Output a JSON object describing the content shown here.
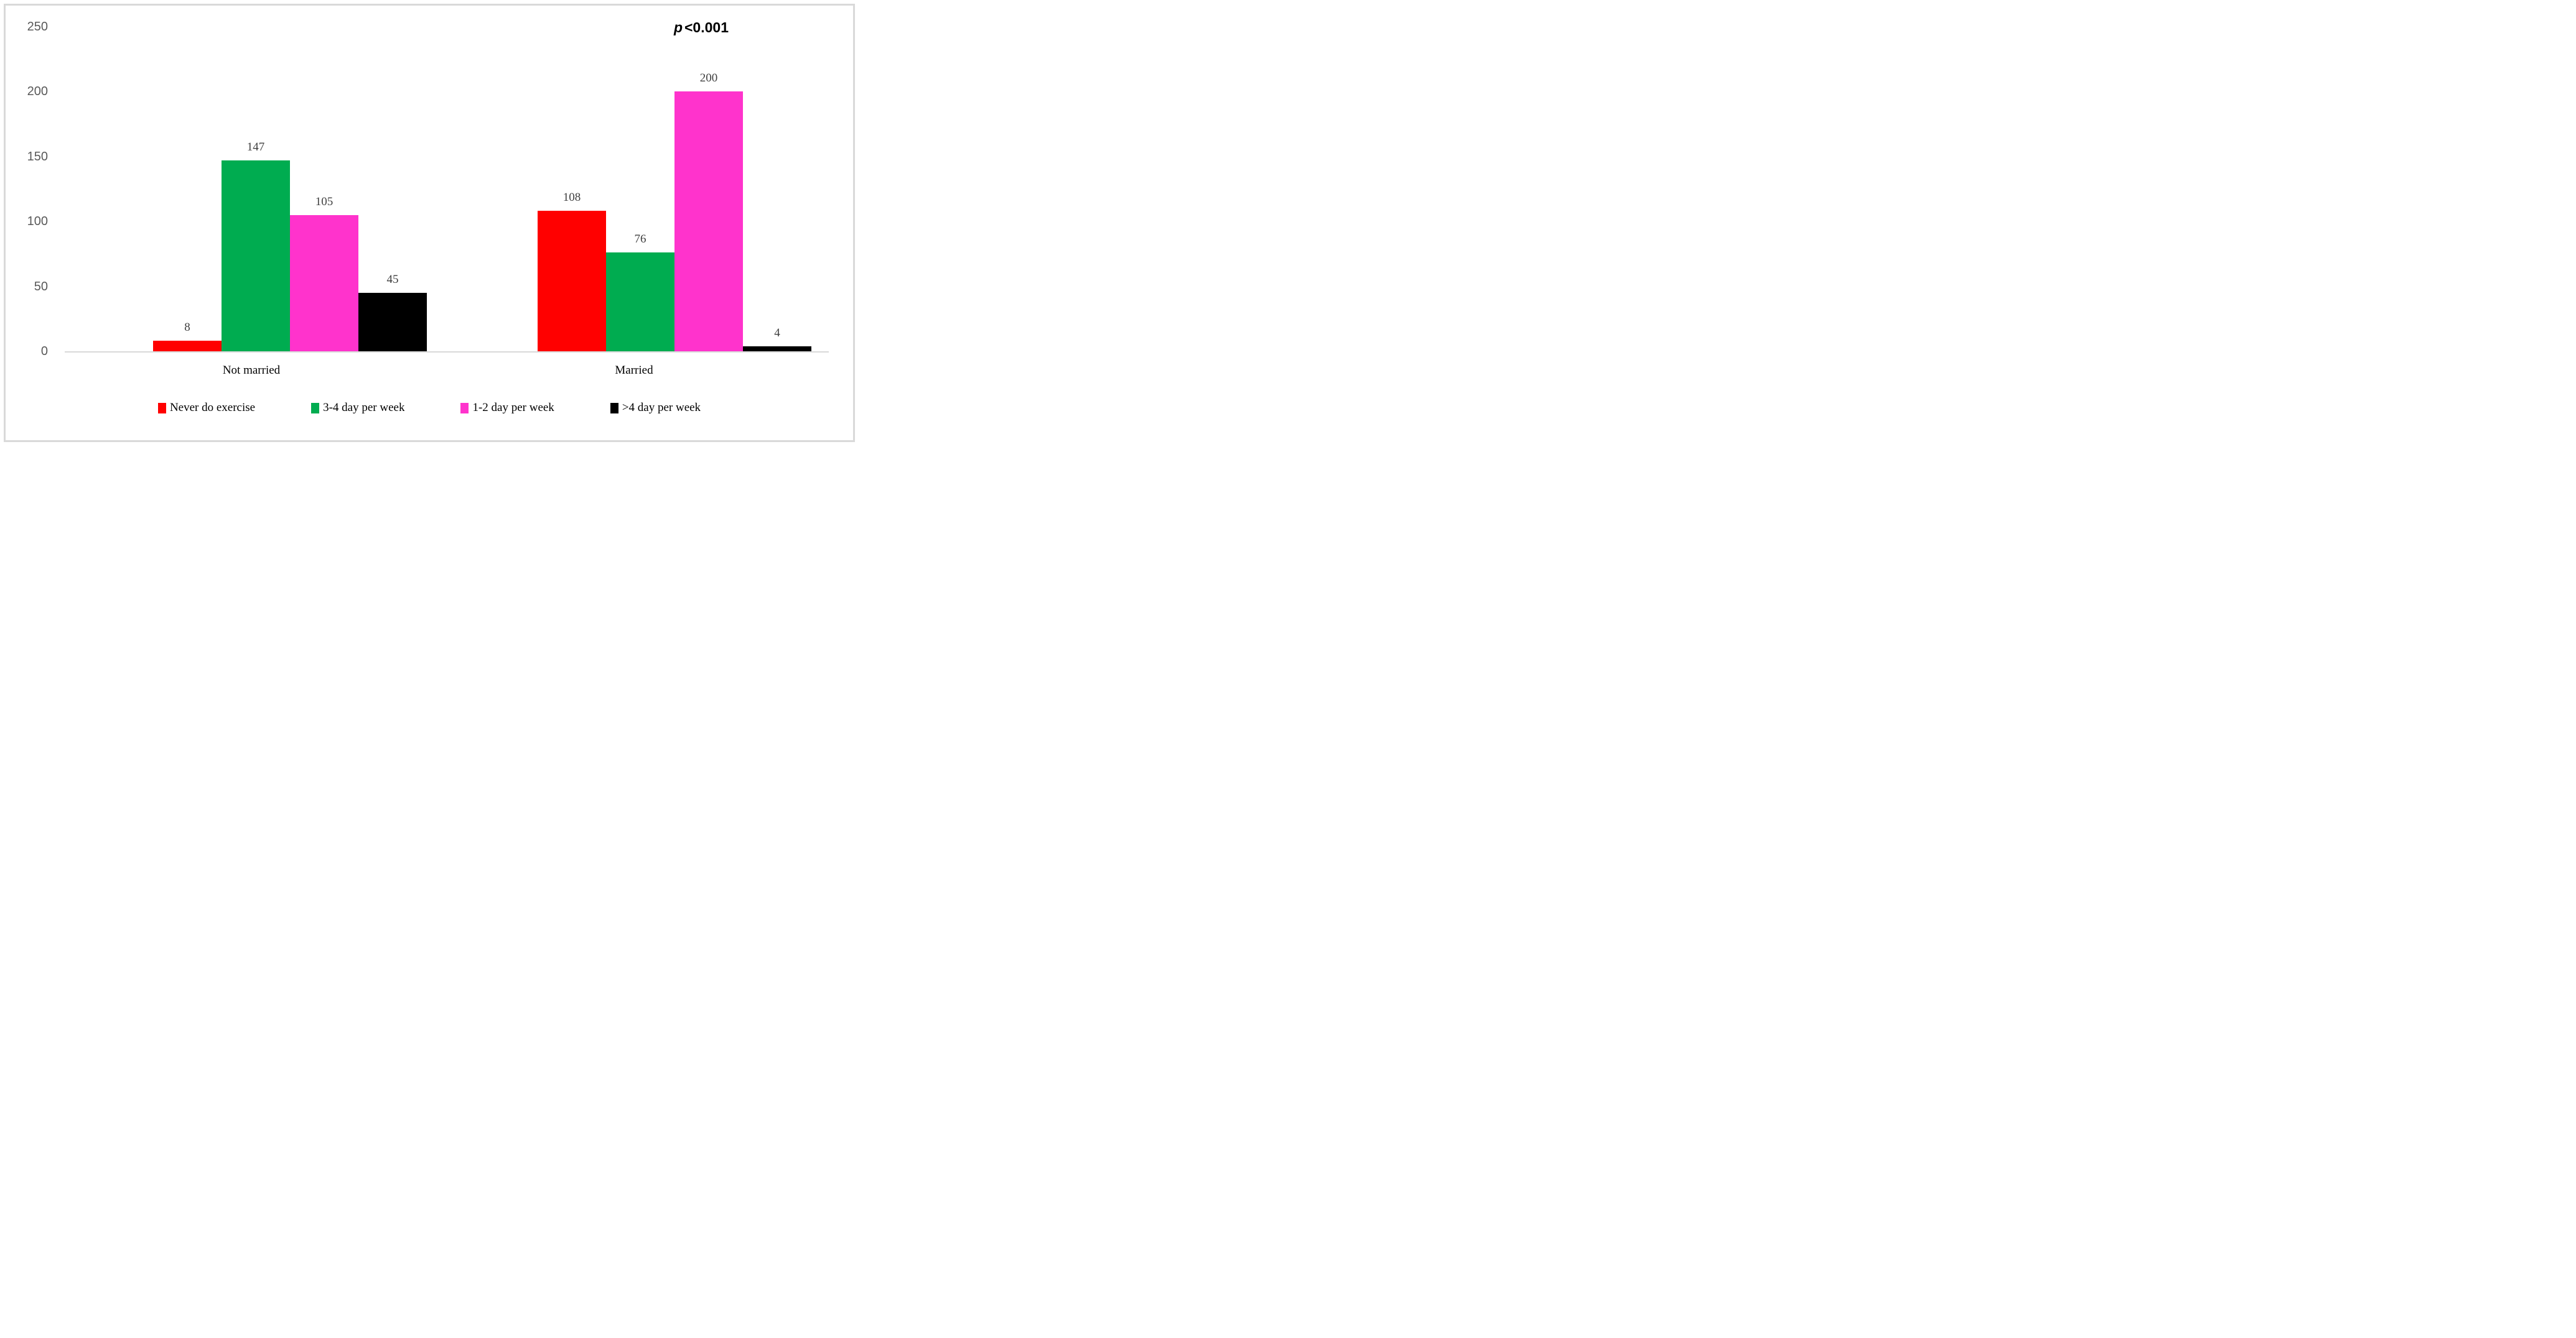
{
  "chart_data": {
    "type": "bar",
    "title": "",
    "categories": [
      "Not married",
      "Married"
    ],
    "series": [
      {
        "name": "Never do exercise",
        "color": "#FF0000",
        "values": [
          8,
          108
        ]
      },
      {
        "name": "3-4 day per week",
        "color": "#00AC50",
        "values": [
          147,
          76
        ]
      },
      {
        "name": "1-2 day per week",
        "color": "#FF33CC",
        "values": [
          105,
          200
        ]
      },
      {
        "name": ">4 day per week",
        "color": "#000000",
        "values": [
          45,
          4
        ]
      }
    ],
    "y_ticks": [
      0,
      50,
      100,
      150,
      200,
      250
    ],
    "ylim": [
      0,
      250
    ],
    "xlabel": "",
    "ylabel": "",
    "grid": false,
    "legend_position": "bottom",
    "bar_layout": "grouped",
    "annotation": "p <0.001",
    "p_prefix": "p",
    "p_rest": "<0.001"
  },
  "colors": {
    "frame_border": "#D9D9D9",
    "axis_line": "#D9D9D9",
    "tick_label": "#595959",
    "data_label": "#3F3F3F",
    "category_label": "#000000",
    "background": "#FFFFFF"
  }
}
